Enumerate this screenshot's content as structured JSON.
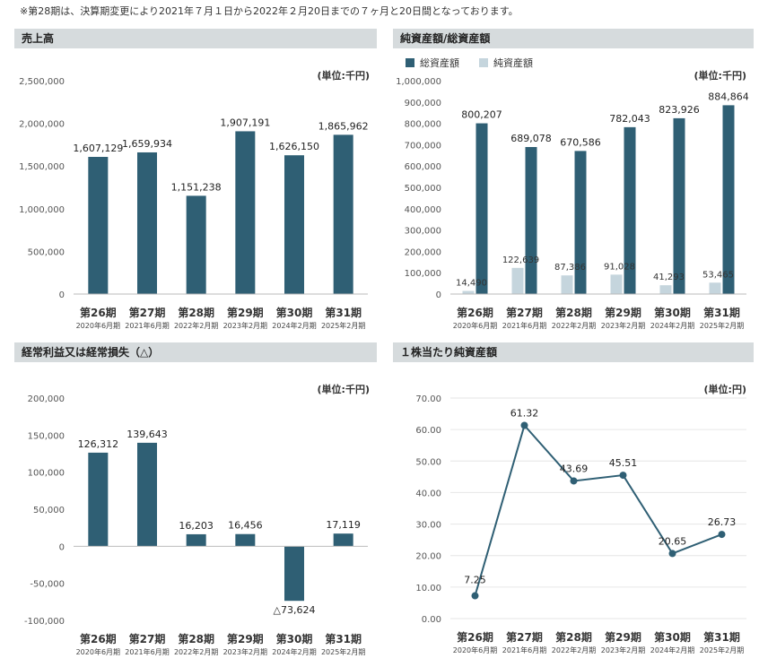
{
  "note": "※第28期は、決算期変更により2021年７月１日から2022年２月20日までの７ヶ月と20日間となっております。",
  "colors": {
    "dark": "#2f5f74",
    "light": "#c5d5dd",
    "line": "#2f5f74",
    "header_bg": "#d6dbdd"
  },
  "chart_data": [
    {
      "type": "bar",
      "title": "売上高",
      "unit": "(単位:千円)",
      "categories": [
        "第26期",
        "第27期",
        "第28期",
        "第29期",
        "第30期",
        "第31期"
      ],
      "subcategories": [
        "2020年6月期",
        "2021年6月期",
        "2022年2月期",
        "2023年2月期",
        "2024年2月期",
        "2025年2月期"
      ],
      "series": [
        {
          "name": "売上高",
          "values": [
            1607129,
            1659934,
            1151238,
            1907191,
            1626150,
            1865962
          ],
          "labels": [
            "1,607,129",
            "1,659,934",
            "1,151,238",
            "1,907,191",
            "1,626,150",
            "1,865,962"
          ]
        }
      ],
      "ylim": [
        0,
        2500000
      ],
      "yticks": [
        0,
        500000,
        1000000,
        1500000,
        2000000,
        2500000
      ],
      "ytick_labels": [
        "0",
        "500,000",
        "1,000,000",
        "1,500,000",
        "2,000,000",
        "2,500,000"
      ]
    },
    {
      "type": "bar",
      "title": "純資産額/総資産額",
      "unit": "(単位:千円)",
      "categories": [
        "第26期",
        "第27期",
        "第28期",
        "第29期",
        "第30期",
        "第31期"
      ],
      "subcategories": [
        "2020年6月期",
        "2021年6月期",
        "2022年2月期",
        "2023年2月期",
        "2024年2月期",
        "2025年2月期"
      ],
      "series": [
        {
          "name": "総資産額",
          "values": [
            800207,
            689078,
            670586,
            782043,
            823926,
            884864
          ],
          "labels": [
            "800,207",
            "689,078",
            "670,586",
            "782,043",
            "823,926",
            "884,864"
          ]
        },
        {
          "name": "純資産額",
          "values": [
            14490,
            122639,
            87386,
            91028,
            41293,
            53465
          ],
          "labels": [
            "14,490",
            "122,639",
            "87,386",
            "91,028",
            "41,293",
            "53,465"
          ]
        }
      ],
      "ylim": [
        0,
        1000000
      ],
      "yticks": [
        0,
        100000,
        200000,
        300000,
        400000,
        500000,
        600000,
        700000,
        800000,
        900000,
        1000000
      ],
      "ytick_labels": [
        "0",
        "100,000",
        "200,000",
        "300,000",
        "400,000",
        "500,000",
        "600,000",
        "700,000",
        "800,000",
        "900,000",
        "1,000,000"
      ]
    },
    {
      "type": "bar",
      "title": "経常利益又は経常損失（△）",
      "unit": "(単位:千円)",
      "categories": [
        "第26期",
        "第27期",
        "第28期",
        "第29期",
        "第30期",
        "第31期"
      ],
      "subcategories": [
        "2020年6月期",
        "2021年6月期",
        "2022年2月期",
        "2023年2月期",
        "2024年2月期",
        "2025年2月期"
      ],
      "series": [
        {
          "name": "経常利益",
          "values": [
            126312,
            139643,
            16203,
            16456,
            -73624,
            17119
          ],
          "labels": [
            "126,312",
            "139,643",
            "16,203",
            "16,456",
            "△73,624",
            "17,119"
          ]
        }
      ],
      "ylim": [
        -100000,
        200000
      ],
      "yticks": [
        -100000,
        -50000,
        0,
        50000,
        100000,
        150000,
        200000
      ],
      "ytick_labels": [
        "-100,000",
        "-50,000",
        "0",
        "50,000",
        "100,000",
        "150,000",
        "200,000"
      ]
    },
    {
      "type": "line",
      "title": "１株当たり純資産額",
      "unit": "(単位:円)",
      "categories": [
        "第26期",
        "第27期",
        "第28期",
        "第29期",
        "第30期",
        "第31期"
      ],
      "subcategories": [
        "2020年6月期",
        "2021年6月期",
        "2022年2月期",
        "2023年2月期",
        "2024年2月期",
        "2025年2月期"
      ],
      "series": [
        {
          "name": "１株当たり純資産額",
          "values": [
            7.25,
            61.32,
            43.69,
            45.51,
            20.65,
            26.73
          ],
          "labels": [
            "7.25",
            "61.32",
            "43.69",
            "45.51",
            "20.65",
            "26.73"
          ]
        }
      ],
      "ylim": [
        0,
        70
      ],
      "yticks": [
        0,
        10,
        20,
        30,
        40,
        50,
        60,
        70
      ],
      "ytick_labels": [
        "0.00",
        "10.00",
        "20.00",
        "30.00",
        "40.00",
        "50.00",
        "60.00",
        "70.00"
      ]
    }
  ]
}
